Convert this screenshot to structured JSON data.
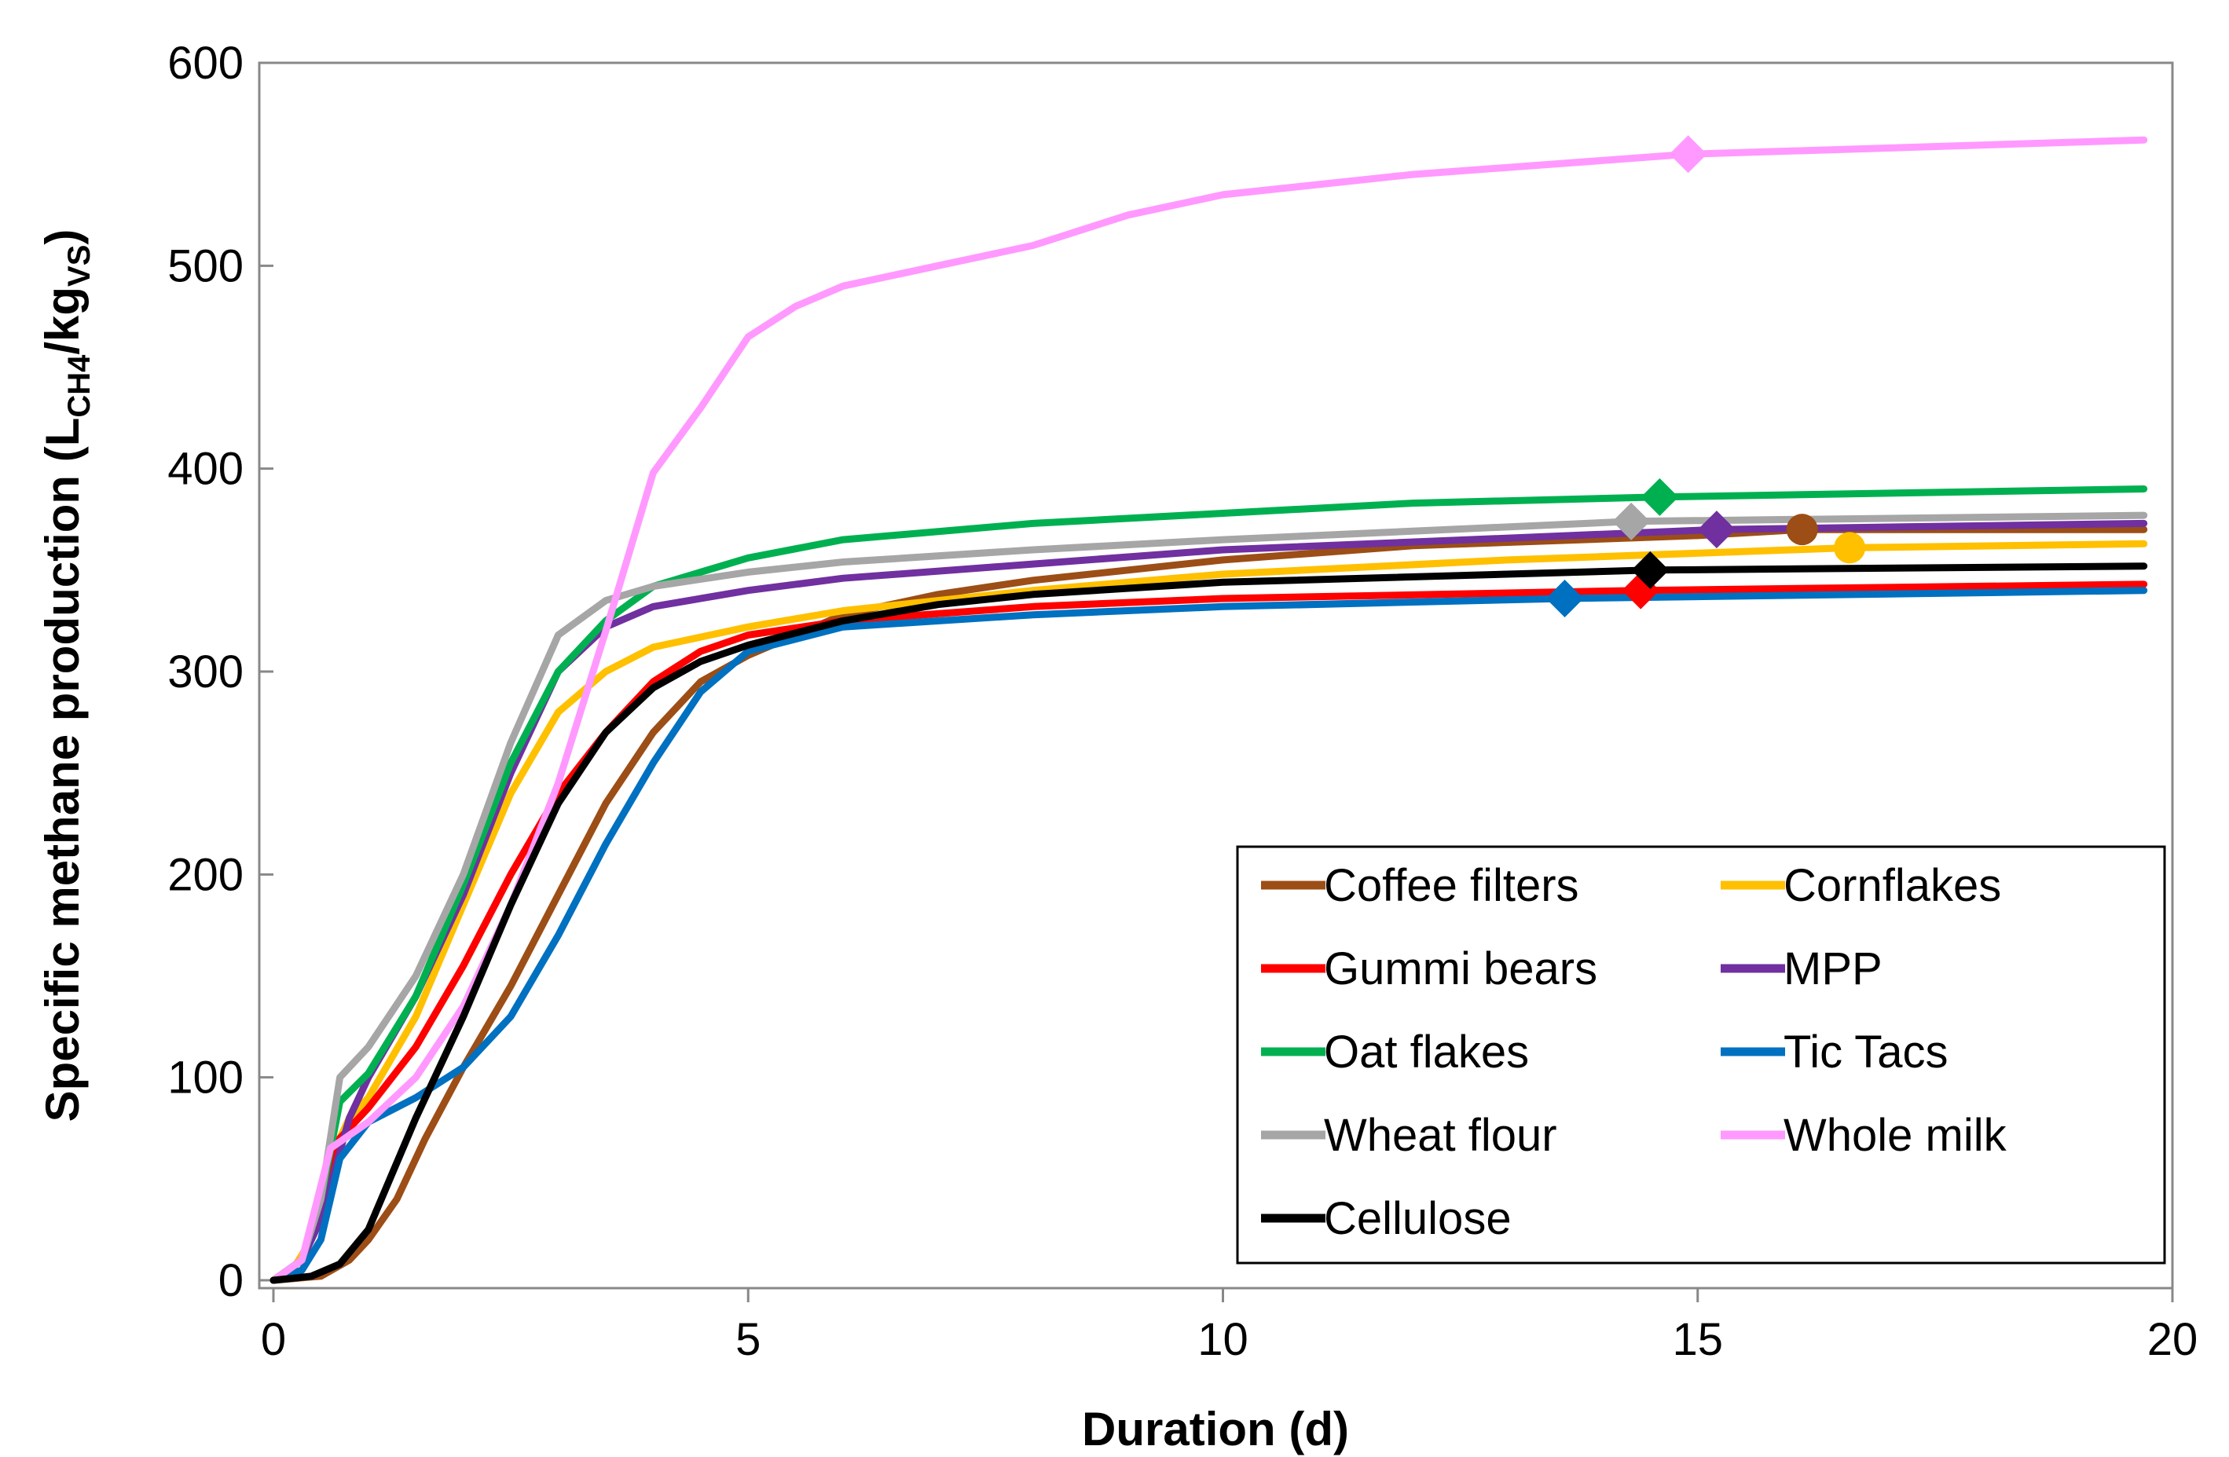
{
  "chart_data": {
    "type": "line",
    "title": "",
    "xlabel": "Duration (d)",
    "ylabel": {
      "prefix": "Specific methane production (L",
      "sub1": "CH4",
      "middle": "/kg",
      "sub2": "VS",
      "suffix": ")"
    },
    "xlim": [
      0,
      20
    ],
    "ylim": [
      0,
      600
    ],
    "xticks": [
      0,
      5,
      10,
      15,
      20
    ],
    "yticks": [
      0,
      100,
      200,
      300,
      400,
      500,
      600
    ],
    "grid": false,
    "legend_position": "bottom-right",
    "series": [
      {
        "name": "Coffee filters",
        "color": "#9C4E16",
        "marker": "circle",
        "marker_point": [
          16.1,
          370
        ],
        "points": [
          [
            0,
            0
          ],
          [
            0.5,
            2
          ],
          [
            0.8,
            10
          ],
          [
            1.0,
            20
          ],
          [
            1.3,
            40
          ],
          [
            1.6,
            70
          ],
          [
            2.0,
            105
          ],
          [
            2.5,
            145
          ],
          [
            3.0,
            190
          ],
          [
            3.5,
            235
          ],
          [
            4.0,
            270
          ],
          [
            4.5,
            295
          ],
          [
            5.0,
            308
          ],
          [
            5.5,
            318
          ],
          [
            6.0,
            328
          ],
          [
            7.0,
            338
          ],
          [
            8.0,
            345
          ],
          [
            10.0,
            355
          ],
          [
            12.0,
            362
          ],
          [
            15.0,
            367
          ],
          [
            16.1,
            370
          ],
          [
            19.7,
            370
          ]
        ]
      },
      {
        "name": "Cornflakes",
        "color": "#FFC000",
        "marker": "circle",
        "marker_point": [
          16.6,
          361
        ],
        "points": [
          [
            0,
            0
          ],
          [
            0.2,
            5
          ],
          [
            0.4,
            20
          ],
          [
            0.6,
            60
          ],
          [
            0.8,
            80
          ],
          [
            1.0,
            90
          ],
          [
            1.5,
            130
          ],
          [
            2.0,
            185
          ],
          [
            2.5,
            240
          ],
          [
            3.0,
            280
          ],
          [
            3.5,
            300
          ],
          [
            4.0,
            312
          ],
          [
            5.0,
            322
          ],
          [
            6.0,
            330
          ],
          [
            8.0,
            340
          ],
          [
            10.0,
            348
          ],
          [
            13.0,
            355
          ],
          [
            16.6,
            361
          ],
          [
            19.7,
            363
          ]
        ]
      },
      {
        "name": "Gummi bears",
        "color": "#FF0000",
        "marker": "diamond",
        "marker_point": [
          14.4,
          340
        ],
        "points": [
          [
            0,
            0
          ],
          [
            0.3,
            10
          ],
          [
            0.5,
            40
          ],
          [
            0.7,
            70
          ],
          [
            1.0,
            85
          ],
          [
            1.5,
            115
          ],
          [
            2.0,
            155
          ],
          [
            2.5,
            200
          ],
          [
            3.0,
            240
          ],
          [
            3.5,
            270
          ],
          [
            4.0,
            295
          ],
          [
            4.5,
            310
          ],
          [
            5.0,
            318
          ],
          [
            6.0,
            325
          ],
          [
            8.0,
            332
          ],
          [
            10.0,
            336
          ],
          [
            14.4,
            340
          ],
          [
            19.7,
            343
          ]
        ]
      },
      {
        "name": "MPP",
        "color": "#7030A0",
        "marker": "diamond",
        "marker_point": [
          15.2,
          370
        ],
        "points": [
          [
            0,
            0
          ],
          [
            0.3,
            10
          ],
          [
            0.5,
            30
          ],
          [
            0.8,
            80
          ],
          [
            1.0,
            100
          ],
          [
            1.5,
            140
          ],
          [
            2.0,
            190
          ],
          [
            2.5,
            250
          ],
          [
            3.0,
            300
          ],
          [
            3.5,
            322
          ],
          [
            4.0,
            332
          ],
          [
            5.0,
            340
          ],
          [
            6.0,
            346
          ],
          [
            8.0,
            353
          ],
          [
            10.0,
            360
          ],
          [
            15.2,
            370
          ],
          [
            19.7,
            373
          ]
        ]
      },
      {
        "name": "Oat flakes",
        "color": "#00B050",
        "marker": "diamond",
        "marker_point": [
          14.6,
          386
        ],
        "points": [
          [
            0,
            0
          ],
          [
            0.3,
            10
          ],
          [
            0.5,
            40
          ],
          [
            0.7,
            88
          ],
          [
            1.0,
            102
          ],
          [
            1.5,
            140
          ],
          [
            2.0,
            195
          ],
          [
            2.5,
            255
          ],
          [
            3.0,
            300
          ],
          [
            3.5,
            325
          ],
          [
            4.0,
            342
          ],
          [
            5.0,
            356
          ],
          [
            6.0,
            365
          ],
          [
            8.0,
            373
          ],
          [
            10.0,
            378
          ],
          [
            12.0,
            383
          ],
          [
            14.6,
            386
          ],
          [
            19.7,
            390
          ]
        ]
      },
      {
        "name": "Tic Tacs",
        "color": "#0070C0",
        "marker": "diamond",
        "marker_point": [
          13.6,
          336
        ],
        "points": [
          [
            0,
            0
          ],
          [
            0.3,
            5
          ],
          [
            0.5,
            20
          ],
          [
            0.7,
            60
          ],
          [
            1.0,
            78
          ],
          [
            1.5,
            90
          ],
          [
            2.0,
            105
          ],
          [
            2.5,
            130
          ],
          [
            3.0,
            170
          ],
          [
            3.5,
            215
          ],
          [
            4.0,
            255
          ],
          [
            4.5,
            290
          ],
          [
            5.0,
            310
          ],
          [
            6.0,
            322
          ],
          [
            8.0,
            328
          ],
          [
            10.0,
            332
          ],
          [
            13.6,
            336
          ],
          [
            19.7,
            340
          ]
        ]
      },
      {
        "name": "Wheat flour",
        "color": "#A6A6A6",
        "marker": "diamond",
        "marker_point": [
          14.3,
          374
        ],
        "points": [
          [
            0,
            0
          ],
          [
            0.3,
            10
          ],
          [
            0.5,
            40
          ],
          [
            0.7,
            100
          ],
          [
            1.0,
            115
          ],
          [
            1.5,
            150
          ],
          [
            2.0,
            200
          ],
          [
            2.5,
            265
          ],
          [
            3.0,
            318
          ],
          [
            3.5,
            335
          ],
          [
            4.0,
            342
          ],
          [
            5.0,
            349
          ],
          [
            6.0,
            354
          ],
          [
            8.0,
            360
          ],
          [
            10.0,
            365
          ],
          [
            14.3,
            374
          ],
          [
            19.7,
            377
          ]
        ]
      },
      {
        "name": "Whole milk",
        "color": "#FF99FF",
        "marker": "diamond",
        "marker_point": [
          14.9,
          555
        ],
        "points": [
          [
            0,
            0
          ],
          [
            0.3,
            10
          ],
          [
            0.6,
            65
          ],
          [
            1.0,
            78
          ],
          [
            1.5,
            100
          ],
          [
            2.0,
            135
          ],
          [
            2.5,
            185
          ],
          [
            3.0,
            245
          ],
          [
            3.5,
            320
          ],
          [
            4.0,
            398
          ],
          [
            4.5,
            430
          ],
          [
            5.0,
            465
          ],
          [
            5.5,
            480
          ],
          [
            6.0,
            490
          ],
          [
            7.0,
            500
          ],
          [
            8.0,
            510
          ],
          [
            9.0,
            525
          ],
          [
            10.0,
            535
          ],
          [
            12.0,
            545
          ],
          [
            14.9,
            555
          ],
          [
            17.0,
            558
          ],
          [
            19.7,
            562
          ]
        ]
      },
      {
        "name": "Cellulose",
        "color": "#000000",
        "marker": "diamond",
        "marker_point": [
          14.5,
          350
        ],
        "points": [
          [
            0,
            0
          ],
          [
            0.4,
            2
          ],
          [
            0.7,
            8
          ],
          [
            1.0,
            25
          ],
          [
            1.5,
            80
          ],
          [
            2.0,
            130
          ],
          [
            2.5,
            185
          ],
          [
            3.0,
            235
          ],
          [
            3.5,
            270
          ],
          [
            4.0,
            292
          ],
          [
            4.5,
            305
          ],
          [
            5.0,
            313
          ],
          [
            6.0,
            325
          ],
          [
            7.0,
            333
          ],
          [
            8.0,
            338
          ],
          [
            10.0,
            344
          ],
          [
            14.5,
            350
          ],
          [
            19.7,
            352
          ]
        ]
      }
    ]
  }
}
